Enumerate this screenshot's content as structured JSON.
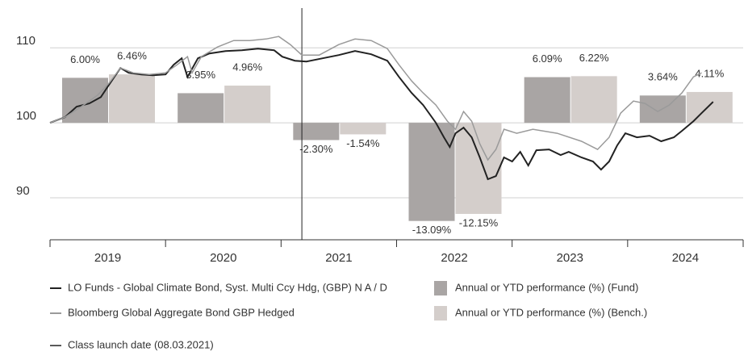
{
  "chart_data": {
    "type": "bar",
    "categories": [
      "2019",
      "2020",
      "2021",
      "2022",
      "2023",
      "2024"
    ],
    "xlim": [
      2019,
      2025
    ],
    "xticks": [
      2019,
      2020,
      2021,
      2022,
      2023,
      2024,
      2025
    ],
    "ylim": [
      84.4,
      115.3
    ],
    "yticks": [
      90,
      100,
      110
    ],
    "y2lim": [
      -15.6,
      15.3
    ],
    "grid": true,
    "series": [
      {
        "name": "LO Funds - Global Climate Bond, Syst. Multi Ccy Hdg, (GBP) N A / D",
        "type": "line",
        "color": "#222222",
        "x": [
          2019.0,
          2019.13,
          2019.23,
          2019.34,
          2019.44,
          2019.51,
          2019.61,
          2019.68,
          2019.79,
          2019.89,
          2020.0,
          2020.07,
          2020.14,
          2020.19,
          2020.28,
          2020.38,
          2020.52,
          2020.66,
          2020.8,
          2020.94,
          2021.01,
          2021.12,
          2021.22,
          2021.36,
          2021.5,
          2021.64,
          2021.78,
          2021.92,
          2022.02,
          2022.13,
          2022.23,
          2022.34,
          2022.41,
          2022.46,
          2022.51,
          2022.58,
          2022.65,
          2022.72,
          2022.79,
          2022.86,
          2022.93,
          2023.0,
          2023.07,
          2023.14,
          2023.21,
          2023.32,
          2023.42,
          2023.49,
          2023.6,
          2023.7,
          2023.77,
          2023.84,
          2023.91,
          2023.98,
          2024.08,
          2024.19,
          2024.29,
          2024.4,
          2024.47,
          2024.57,
          2024.64,
          2024.74
        ],
        "values": [
          100.0,
          100.75,
          102.15,
          102.58,
          103.44,
          105.05,
          107.31,
          106.67,
          106.45,
          106.34,
          106.45,
          107.74,
          108.6,
          106.1,
          108.6,
          109.25,
          109.57,
          109.68,
          109.89,
          109.68,
          108.82,
          108.28,
          108.17,
          108.6,
          109.03,
          109.57,
          109.14,
          108.28,
          106.13,
          103.98,
          102.37,
          100.0,
          98.06,
          96.77,
          98.6,
          99.35,
          98.06,
          95.38,
          92.47,
          92.9,
          95.38,
          94.84,
          96.13,
          94.3,
          96.34,
          96.45,
          95.7,
          96.13,
          95.38,
          94.84,
          93.76,
          94.84,
          96.99,
          98.6,
          98.06,
          98.28,
          97.53,
          98.06,
          98.92,
          100.22,
          101.29,
          102.8
        ]
      },
      {
        "name": "Bloomberg Global Aggregate Bond GBP Hedged",
        "type": "line",
        "color": "#9a9a9a",
        "x": [
          2019.0,
          2019.13,
          2019.27,
          2019.41,
          2019.51,
          2019.61,
          2019.72,
          2019.86,
          2020.0,
          2020.1,
          2020.19,
          2020.23,
          2020.31,
          2020.45,
          2020.59,
          2020.73,
          2020.87,
          2020.98,
          2021.08,
          2021.18,
          2021.33,
          2021.5,
          2021.64,
          2021.78,
          2021.92,
          2022.02,
          2022.13,
          2022.23,
          2022.34,
          2022.44,
          2022.51,
          2022.58,
          2022.65,
          2022.72,
          2022.79,
          2022.86,
          2022.93,
          2023.04,
          2023.18,
          2023.39,
          2023.6,
          2023.74,
          2023.84,
          2023.94,
          2024.05,
          2024.15,
          2024.26,
          2024.36,
          2024.47,
          2024.57,
          2024.64
        ],
        "values": [
          100.0,
          100.75,
          102.15,
          103.66,
          105.27,
          107.31,
          106.67,
          106.45,
          106.67,
          107.74,
          108.82,
          106.67,
          108.82,
          110.11,
          110.97,
          110.97,
          111.18,
          111.51,
          110.43,
          109.03,
          109.03,
          110.43,
          111.18,
          110.97,
          109.89,
          107.74,
          105.59,
          103.98,
          102.37,
          100.22,
          99.14,
          101.51,
          100.22,
          97.2,
          95.05,
          96.45,
          99.14,
          98.6,
          99.14,
          98.6,
          97.53,
          96.45,
          98.06,
          101.29,
          102.9,
          102.58,
          101.51,
          102.37,
          103.98,
          106.13,
          106.67
        ]
      },
      {
        "name": "Annual or YTD performance (%) (Fund)",
        "type": "bar",
        "axis": "y2",
        "color": "#a9a5a4",
        "values": [
          6.0,
          3.95,
          -2.3,
          -13.09,
          6.09,
          3.64
        ],
        "value_labels": [
          "6.00%",
          "3.95%",
          "-2.30%",
          "-13.09%",
          "6.09%",
          "3.64%"
        ]
      },
      {
        "name": "Annual or YTD performance (%) (Bench.)",
        "type": "bar",
        "axis": "y2",
        "color": "#d4cecb",
        "values": [
          6.46,
          4.96,
          -1.54,
          -12.15,
          6.22,
          4.11
        ],
        "value_labels": [
          "6.46%",
          "4.96%",
          "-1.54%",
          "-12.15%",
          "6.22%",
          "4.11%"
        ]
      }
    ],
    "annotation": {
      "label": "Class launch date (08.03.2021)",
      "x": 2021.18,
      "color": "#222222"
    }
  }
}
